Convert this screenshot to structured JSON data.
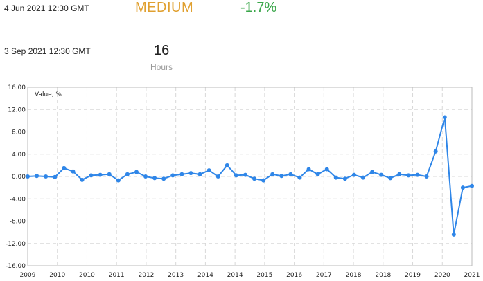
{
  "events": [
    {
      "date": "4 Jun 2021 12:30 GMT",
      "impact": "MEDIUM",
      "change": "-1.7%"
    },
    {
      "date": "3 Sep 2021 12:30 GMT",
      "countdown": "16",
      "countdown_unit": "Hours"
    }
  ],
  "colors": {
    "impact": "#e0a030",
    "change": "#3aa64a",
    "series": "#2f86e8",
    "grid": "#d8d8d8"
  },
  "chart_data": {
    "type": "line",
    "ylabel": "Value, %",
    "ylim": [
      -16,
      16
    ],
    "yticks": [
      "16.00",
      "12.00",
      "8.00",
      "4.00",
      "0.00",
      "-4.00",
      "-8.00",
      "-12.00",
      "-16.00"
    ],
    "xticks": [
      "2009",
      "2010",
      "2010",
      "2011",
      "2012",
      "2013",
      "2014",
      "2014",
      "2015",
      "2016",
      "2017",
      "2018",
      "2018",
      "2019",
      "2020",
      "2021"
    ],
    "grid": true,
    "series": [
      {
        "values": [
          0.0,
          0.1,
          0.0,
          -0.1,
          1.5,
          0.9,
          -0.6,
          0.2,
          0.3,
          0.4,
          -0.7,
          0.4,
          0.8,
          0.0,
          -0.3,
          -0.4,
          0.2,
          0.4,
          0.6,
          0.4,
          1.1,
          0.0,
          2.0,
          0.2,
          0.3,
          -0.4,
          -0.7,
          0.4,
          0.1,
          0.4,
          -0.2,
          1.3,
          0.4,
          1.3,
          -0.2,
          -0.4,
          0.3,
          -0.2,
          0.8,
          0.3,
          -0.3,
          0.4,
          0.2,
          0.3,
          0.0,
          4.5,
          10.6,
          -10.4,
          -2.0,
          -1.7
        ]
      }
    ]
  }
}
